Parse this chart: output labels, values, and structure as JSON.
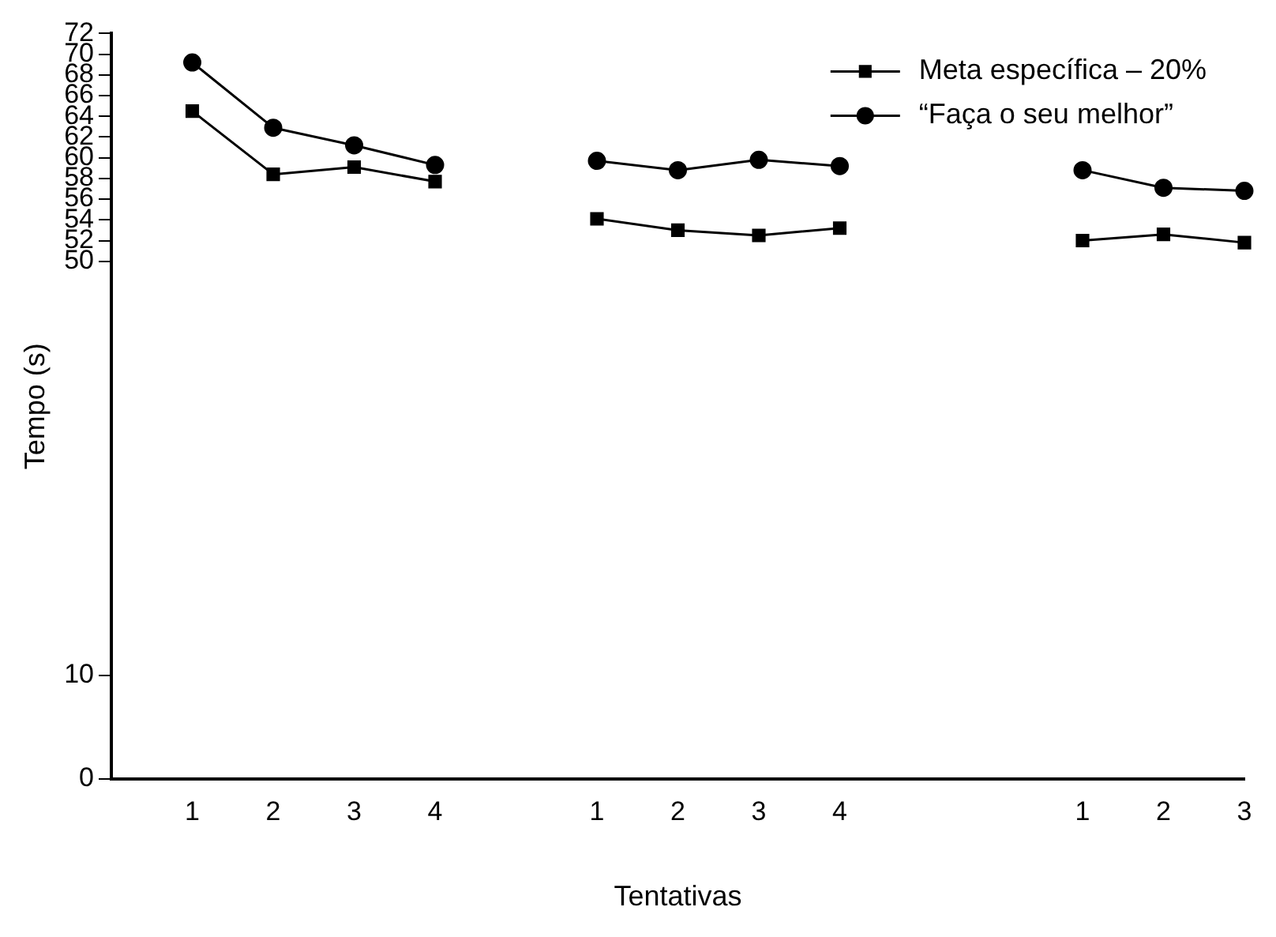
{
  "chart_data": {
    "type": "line",
    "xlabel": "Tentativas",
    "ylabel": "Tempo (s)",
    "categories": [
      null,
      "1",
      "2",
      "3",
      "4",
      null,
      "1",
      "2",
      "3",
      "4",
      null,
      null,
      "1",
      "2",
      "3"
    ],
    "series": [
      {
        "name": "Meta específica – 20%",
        "color": "#000000",
        "marker": "square",
        "values": [
          null,
          64.5,
          58.4,
          59.1,
          57.7,
          null,
          54.1,
          53.0,
          52.5,
          53.2,
          null,
          null,
          52.0,
          52.6,
          51.8
        ]
      },
      {
        "name": "“Faça o seu melhor”",
        "color": "#000000",
        "marker": "circle",
        "values": [
          null,
          69.2,
          62.9,
          61.2,
          59.3,
          null,
          59.7,
          58.8,
          59.8,
          59.2,
          null,
          null,
          58.8,
          57.1,
          56.8
        ]
      }
    ],
    "ylim": [
      0,
      72
    ],
    "yticks": [
      0,
      10,
      50,
      52,
      54,
      56,
      58,
      60,
      62,
      64,
      66,
      68,
      70,
      72
    ],
    "grid": false,
    "legend": "top right",
    "line_style": "solid"
  }
}
